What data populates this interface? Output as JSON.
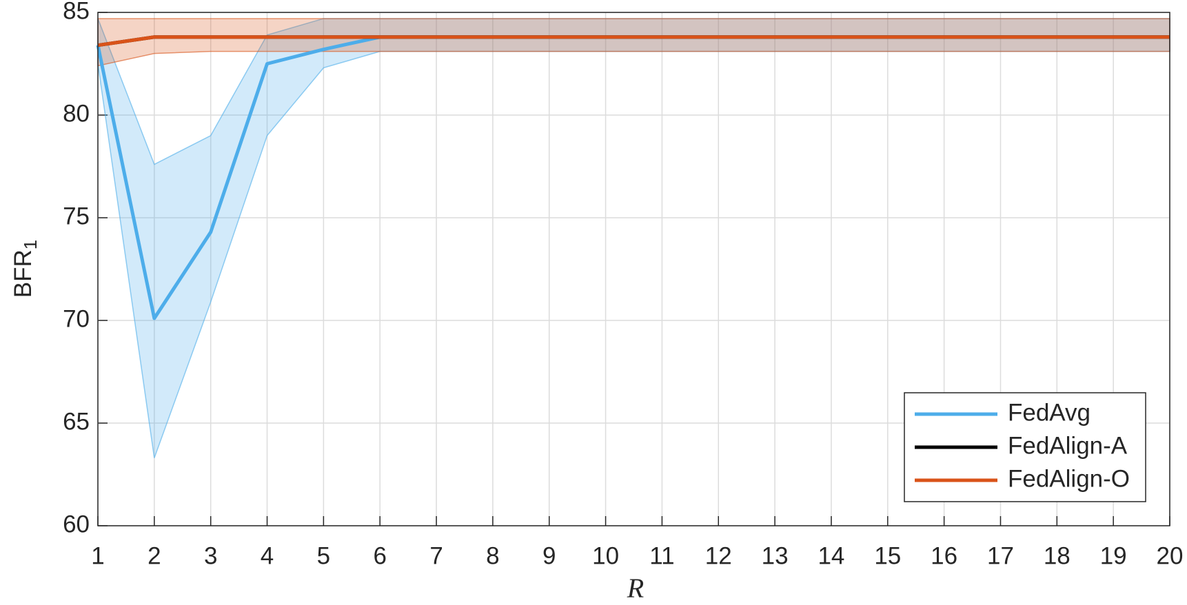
{
  "chart_data": {
    "type": "line",
    "xlabel": "R",
    "ylabel": "BFR",
    "ylabel_subscript": "1",
    "x": [
      1,
      2,
      3,
      4,
      5,
      6,
      7,
      8,
      9,
      10,
      11,
      12,
      13,
      14,
      15,
      16,
      17,
      18,
      19,
      20
    ],
    "xlim": [
      1,
      20
    ],
    "xticks": [
      1,
      2,
      3,
      4,
      5,
      6,
      7,
      8,
      9,
      10,
      11,
      12,
      13,
      14,
      15,
      16,
      17,
      18,
      19,
      20
    ],
    "ylim": [
      60,
      85
    ],
    "yticks": [
      60,
      65,
      70,
      75,
      80,
      85
    ],
    "grid": true,
    "legend": "lower right",
    "series": [
      {
        "name": "FedAvg",
        "color": "#4dadea",
        "values": [
          83.4,
          70.1,
          74.3,
          82.5,
          83.2,
          83.8,
          83.8,
          83.8,
          83.8,
          83.8,
          83.8,
          83.8,
          83.8,
          83.8,
          83.8,
          83.8,
          83.8,
          83.8,
          83.8,
          83.8
        ],
        "upper": [
          84.7,
          77.6,
          79.0,
          83.9,
          84.7,
          84.7,
          84.7,
          84.7,
          84.7,
          84.7,
          84.7,
          84.7,
          84.7,
          84.7,
          84.7,
          84.7,
          84.7,
          84.7,
          84.7,
          84.7
        ],
        "lower": [
          82.5,
          63.3,
          70.9,
          79.0,
          82.3,
          83.1,
          83.1,
          83.1,
          83.1,
          83.1,
          83.1,
          83.1,
          83.1,
          83.1,
          83.1,
          83.1,
          83.1,
          83.1,
          83.1,
          83.1
        ]
      },
      {
        "name": "FedAlign-A",
        "color": "#000000",
        "values": [
          83.4,
          83.8,
          83.8,
          83.8,
          83.8,
          83.8,
          83.8,
          83.8,
          83.8,
          83.8,
          83.8,
          83.8,
          83.8,
          83.8,
          83.8,
          83.8,
          83.8,
          83.8,
          83.8,
          83.8
        ]
      },
      {
        "name": "FedAlign-O",
        "color": "#d95319",
        "values": [
          83.4,
          83.8,
          83.8,
          83.8,
          83.8,
          83.8,
          83.8,
          83.8,
          83.8,
          83.8,
          83.8,
          83.8,
          83.8,
          83.8,
          83.8,
          83.8,
          83.8,
          83.8,
          83.8,
          83.8
        ],
        "upper": [
          84.7,
          84.7,
          84.7,
          84.7,
          84.7,
          84.7,
          84.7,
          84.7,
          84.7,
          84.7,
          84.7,
          84.7,
          84.7,
          84.7,
          84.7,
          84.7,
          84.7,
          84.7,
          84.7,
          84.7
        ],
        "lower": [
          82.4,
          83.0,
          83.1,
          83.1,
          83.1,
          83.1,
          83.1,
          83.1,
          83.1,
          83.1,
          83.1,
          83.1,
          83.1,
          83.1,
          83.1,
          83.1,
          83.1,
          83.1,
          83.1,
          83.1
        ]
      }
    ]
  }
}
